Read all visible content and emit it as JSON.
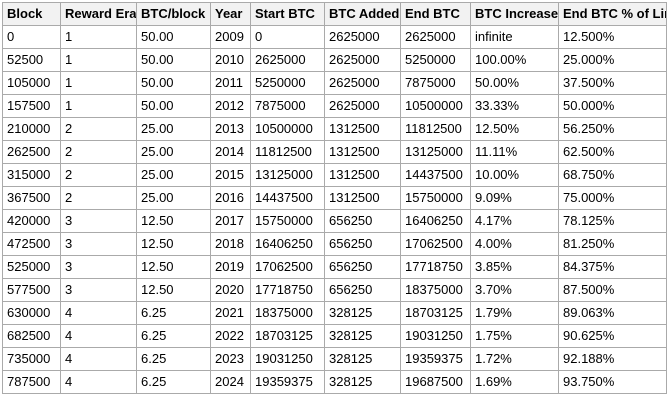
{
  "style": {
    "border_color": "#aaaaaa",
    "header_bg": "#f2f2f2",
    "cell_bg": "#ffffff",
    "text_color": "#000000"
  },
  "chart_data": {
    "type": "table",
    "headers": [
      "Block",
      "Reward Era",
      "BTC/block",
      "Year",
      "Start BTC",
      "BTC Added",
      "End BTC",
      "BTC Increase",
      "End BTC % of Limit"
    ],
    "rows": [
      [
        "0",
        "1",
        "50.00",
        "2009",
        "0",
        "2625000",
        "2625000",
        "infinite",
        "12.500%"
      ],
      [
        "52500",
        "1",
        "50.00",
        "2010",
        "2625000",
        "2625000",
        "5250000",
        "100.00%",
        "25.000%"
      ],
      [
        "105000",
        "1",
        "50.00",
        "2011",
        "5250000",
        "2625000",
        "7875000",
        "50.00%",
        "37.500%"
      ],
      [
        "157500",
        "1",
        "50.00",
        "2012",
        "7875000",
        "2625000",
        "10500000",
        "33.33%",
        "50.000%"
      ],
      [
        "210000",
        "2",
        "25.00",
        "2013",
        "10500000",
        "1312500",
        "11812500",
        "12.50%",
        "56.250%"
      ],
      [
        "262500",
        "2",
        "25.00",
        "2014",
        "11812500",
        "1312500",
        "13125000",
        "11.11%",
        "62.500%"
      ],
      [
        "315000",
        "2",
        "25.00",
        "2015",
        "13125000",
        "1312500",
        "14437500",
        "10.00%",
        "68.750%"
      ],
      [
        "367500",
        "2",
        "25.00",
        "2016",
        "14437500",
        "1312500",
        "15750000",
        "9.09%",
        "75.000%"
      ],
      [
        "420000",
        "3",
        "12.50",
        "2017",
        "15750000",
        "656250",
        "16406250",
        "4.17%",
        "78.125%"
      ],
      [
        "472500",
        "3",
        "12.50",
        "2018",
        "16406250",
        "656250",
        "17062500",
        "4.00%",
        "81.250%"
      ],
      [
        "525000",
        "3",
        "12.50",
        "2019",
        "17062500",
        "656250",
        "17718750",
        "3.85%",
        "84.375%"
      ],
      [
        "577500",
        "3",
        "12.50",
        "2020",
        "17718750",
        "656250",
        "18375000",
        "3.70%",
        "87.500%"
      ],
      [
        "630000",
        "4",
        "6.25",
        "2021",
        "18375000",
        "328125",
        "18703125",
        "1.79%",
        "89.063%"
      ],
      [
        "682500",
        "4",
        "6.25",
        "2022",
        "18703125",
        "328125",
        "19031250",
        "1.75%",
        "90.625%"
      ],
      [
        "735000",
        "4",
        "6.25",
        "2023",
        "19031250",
        "328125",
        "19359375",
        "1.72%",
        "92.188%"
      ],
      [
        "787500",
        "4",
        "6.25",
        "2024",
        "19359375",
        "328125",
        "19687500",
        "1.69%",
        "93.750%"
      ]
    ]
  }
}
